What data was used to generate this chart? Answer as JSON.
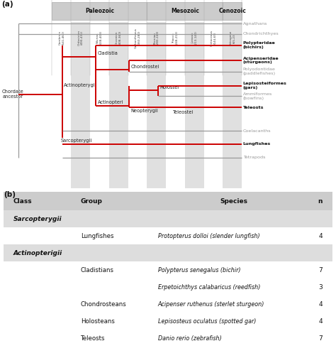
{
  "bg_color": "#ffffff",
  "era_header_color": "#cccccc",
  "era_stripe_color": "#e0e0e0",
  "table_header_bg": "#cccccc",
  "table_class_bg": "#dddddd",
  "table_white_bg": "#ffffff",
  "periods": [
    "Cambrian\n(541-460)",
    "Ordovician\n(490-435)",
    "Silurian\n(438-408)",
    "Devonian\n(408-360)",
    "Carboniferous\n(360-280)",
    "Permian\n(280-248)",
    "Triassic\n(248-213)",
    "Jurassic\n(213-144)",
    "Cretaceous\n(144-65)",
    "Paleogene\n(65-23)"
  ],
  "stripe_cols": [
    1,
    3,
    5,
    7,
    9
  ],
  "eras": [
    {
      "name": "Paleozoic",
      "start": 0,
      "end": 5
    },
    {
      "name": "Mesozoic",
      "start": 5,
      "end": 9
    },
    {
      "name": "Cenozoic",
      "start": 9,
      "end": 10
    }
  ],
  "red_color": "#cc0000",
  "gray_color": "#999999",
  "dark_color": "#222222",
  "lw_red": 1.4,
  "lw_gray": 0.9,
  "table_columns": [
    "Class",
    "Group",
    "Species",
    "n"
  ],
  "table_rows": [
    {
      "class": "Sarcopterygii",
      "group": "",
      "species": "",
      "n": "",
      "is_class_row": true
    },
    {
      "class": "",
      "group": "Lungfishes",
      "species": "Protopterus dolloi (slender lungfish)",
      "n": "4"
    },
    {
      "class": "Actinopterigii",
      "group": "",
      "species": "",
      "n": "",
      "is_class_row": true
    },
    {
      "class": "",
      "group": "Cladistians",
      "species": "Polypterus senegalus (bichir)",
      "n": "7"
    },
    {
      "class": "",
      "group": "",
      "species": "Erpetoichthys calabaricus (reedfish)",
      "n": "3"
    },
    {
      "class": "",
      "group": "Chondrosteans",
      "species": "Acipenser ruthenus (sterlet sturgeon)",
      "n": "4"
    },
    {
      "class": "",
      "group": "Holosteans",
      "species": "Lepisosteus oculatus (spotted gar)",
      "n": "4"
    },
    {
      "class": "",
      "group": "Teleosts",
      "species": "Danio rerio (zebrafish)",
      "n": "7"
    }
  ]
}
